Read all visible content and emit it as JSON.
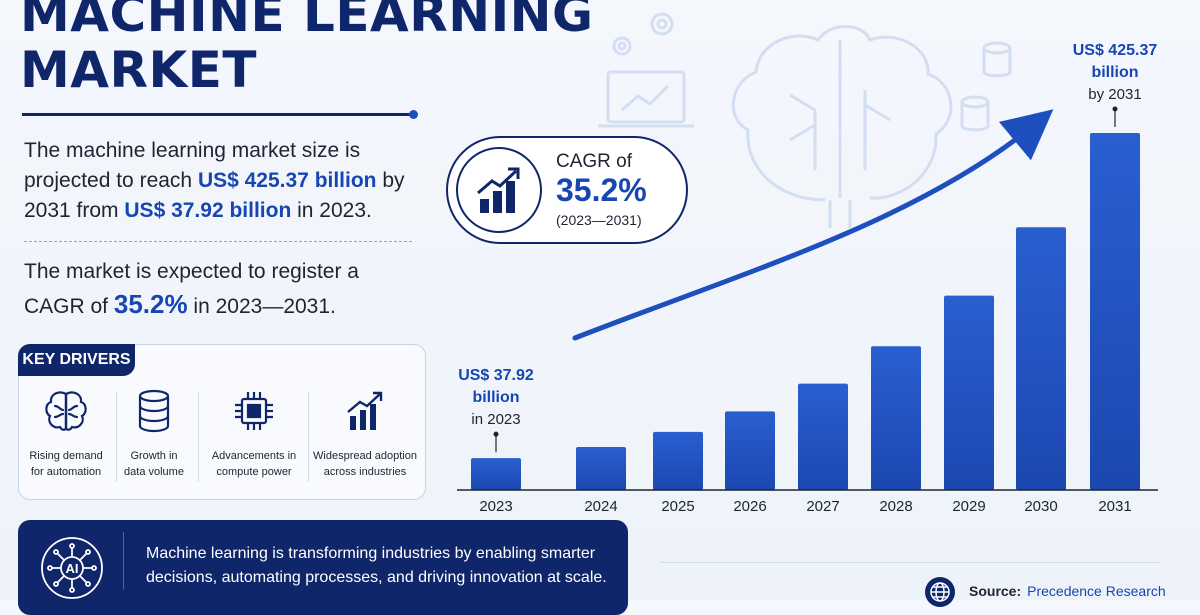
{
  "header": {
    "title_line1": "MACHINE LEARNING",
    "title_line2": "MARKET"
  },
  "summary": {
    "p1_a": "The machine learning market size is projected to reach ",
    "p1_hl1": "US$ 425.37 billion",
    "p1_b": " by 2031 from ",
    "p1_hl2": "US$ 37.92 billion",
    "p1_c": " in 2023.",
    "p2_a": "The market is expected to register a CAGR of ",
    "p2_hl": "35.2%",
    "p2_b": " in 2023—2031."
  },
  "drivers": {
    "title": "KEY DRIVERS",
    "items": [
      {
        "line1": "Rising demand",
        "line2": "for automation",
        "icon": "brain-icon"
      },
      {
        "line1": "Growth in",
        "line2": "data volume",
        "icon": "database-icon"
      },
      {
        "line1": "Advancements in",
        "line2": "compute power",
        "icon": "chip-icon"
      },
      {
        "line1": "Widespread adoption",
        "line2": "across industries",
        "icon": "growth-chart-icon"
      }
    ]
  },
  "footer": {
    "text": "Machine learning is transforming industries by enabling smarter decisions, automating processes, and driving innovation at scale.",
    "icon": "ai-circuit-icon"
  },
  "source": {
    "label": "Source:",
    "value": "Precedence Research"
  },
  "cagr": {
    "label": "CAGR of",
    "value": "35.2%",
    "period": "(2023—2031)"
  },
  "colors": {
    "navy": "#10266b",
    "accent": "#1746b3",
    "bar_top": "#2a5fd0",
    "bar_bottom": "#1c47b0"
  },
  "chart_data": {
    "type": "bar",
    "categories": [
      "2023",
      "2024",
      "2025",
      "2026",
      "2027",
      "2028",
      "2029",
      "2030",
      "2031"
    ],
    "values": [
      37.92,
      51.3,
      69.3,
      93.7,
      126.7,
      171.3,
      231.6,
      313.0,
      425.37
    ],
    "title": "",
    "xlabel": "",
    "ylabel": "",
    "ylim": [
      0,
      425.37
    ],
    "grid": false,
    "legend": "none",
    "annotations": [
      {
        "category": "2023",
        "lines": [
          "US$ 37.92",
          "billion",
          "in 2023"
        ]
      },
      {
        "category": "2031",
        "lines": [
          "US$ 425.37",
          "billion",
          "by 2031"
        ]
      }
    ],
    "trend_arrow": true
  }
}
